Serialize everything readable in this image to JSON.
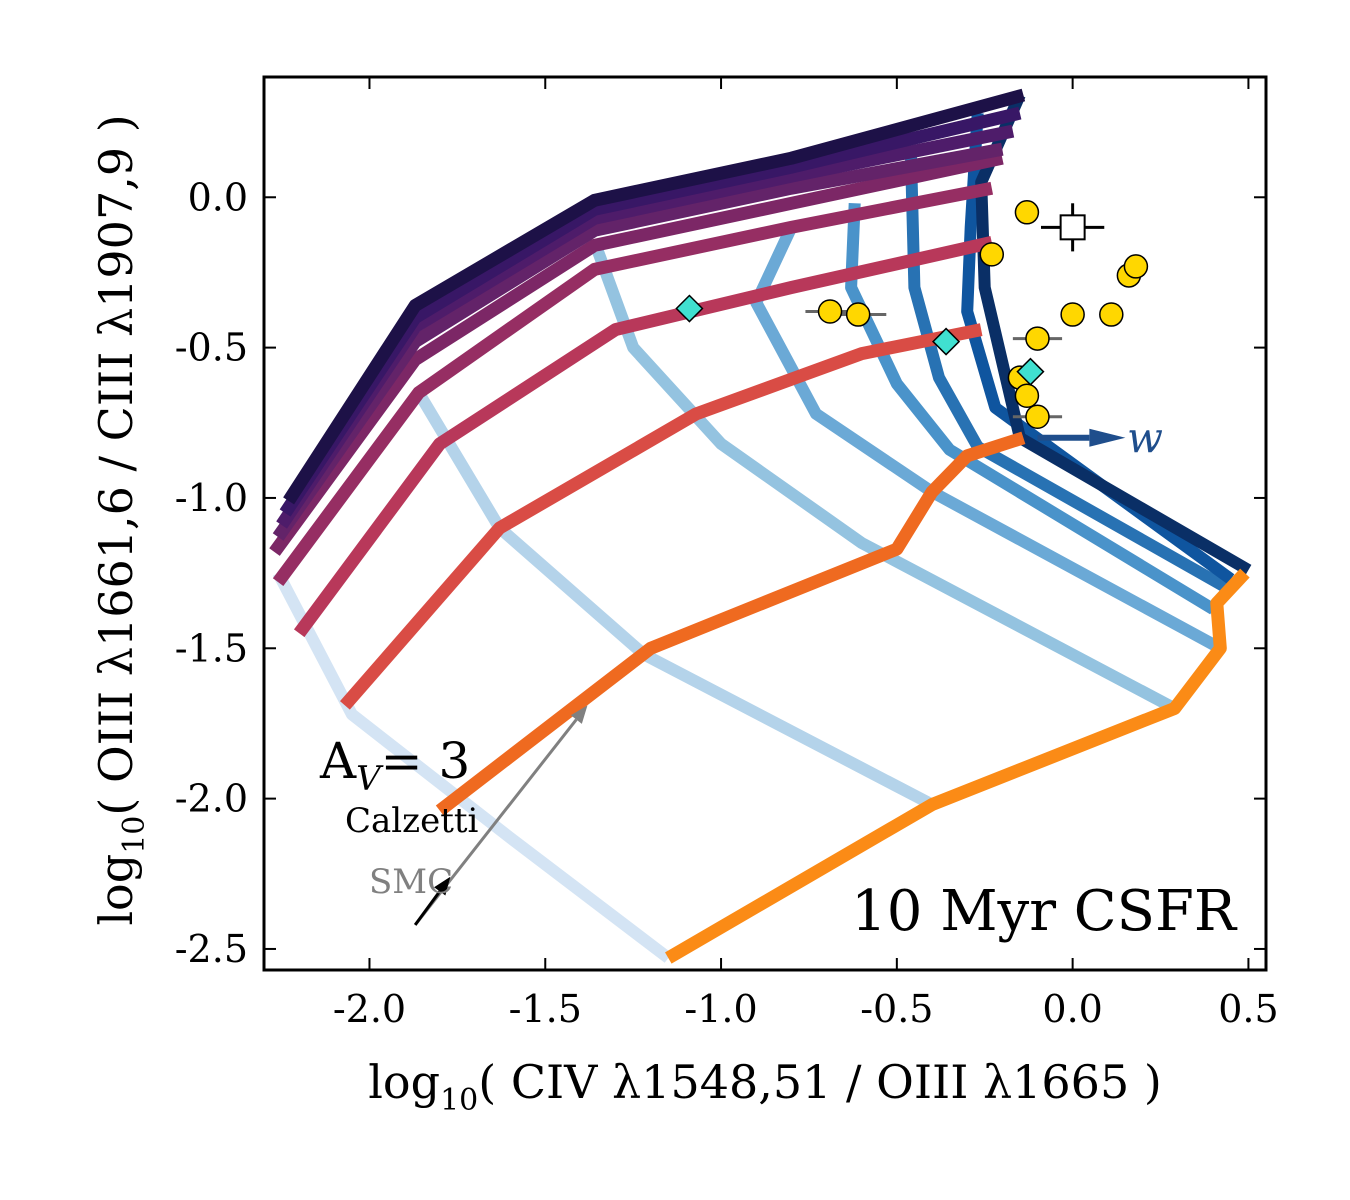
{
  "chart_data": {
    "type": "line",
    "title": "",
    "xlabel_parts": [
      "log",
      "10",
      "( CIV λ1548,51 / OIII λ1665 )"
    ],
    "ylabel_parts": [
      "log",
      "10",
      "( OIII λ1661,6 / CIII λ1907,9 )"
    ],
    "xlim": [
      -2.3,
      0.55
    ],
    "ylim": [
      -2.57,
      0.4
    ],
    "xticks": [
      -2.0,
      -1.5,
      -1.0,
      -0.5,
      0.0,
      0.5
    ],
    "xtick_labels": [
      "-2.0",
      "-1.5",
      "-1.0",
      "-0.5",
      "0.0",
      "0.5"
    ],
    "yticks": [
      0.0,
      -0.5,
      -1.0,
      -1.5,
      -2.0,
      -2.5
    ],
    "ytick_labels": [
      "0.0",
      "-0.5",
      "-1.0",
      "-1.5",
      "-2.0",
      "-2.5"
    ],
    "annotations": {
      "csfr": "10 Myr CSFR",
      "av_main": "A",
      "av_sub": "V",
      "av_eq": "= 3",
      "calzetti": "Calzetti",
      "smc": "SMC",
      "w": "w"
    },
    "colors": {
      "axis": "#000000",
      "arrow_gray": "#808080",
      "w_arrow": "#1f4e8c",
      "diamond": "#40e0d0",
      "circle": "#ffd700"
    },
    "grid_lines_colored_red_orange": [
      {
        "color": "#fb8b16",
        "points": [
          [
            -1.15,
            -2.53
          ],
          [
            -0.4,
            -2.02
          ],
          [
            0.29,
            -1.7
          ],
          [
            0.42,
            -1.5
          ],
          [
            0.41,
            -1.35
          ],
          [
            0.49,
            -1.25
          ]
        ]
      },
      {
        "color": "#ef6a20",
        "points": [
          [
            -1.8,
            -2.04
          ],
          [
            -1.2,
            -1.5
          ],
          [
            -0.5,
            -1.17
          ],
          [
            -0.4,
            -0.98
          ],
          [
            -0.3,
            -0.86
          ],
          [
            -0.14,
            -0.8
          ]
        ]
      },
      {
        "color": "#d94c45",
        "points": [
          [
            -2.07,
            -1.69
          ],
          [
            -1.63,
            -1.1
          ],
          [
            -1.07,
            -0.72
          ],
          [
            -0.6,
            -0.52
          ],
          [
            -0.26,
            -0.44
          ]
        ]
      },
      {
        "color": "#b8385a",
        "points": [
          [
            -2.2,
            -1.45
          ],
          [
            -1.8,
            -0.82
          ],
          [
            -1.3,
            -0.44
          ],
          [
            -0.8,
            -0.3
          ],
          [
            -0.23,
            -0.15
          ]
        ]
      },
      {
        "color": "#962e63",
        "points": [
          [
            -2.26,
            -1.28
          ],
          [
            -1.86,
            -0.65
          ],
          [
            -1.36,
            -0.24
          ],
          [
            -0.8,
            -0.1
          ],
          [
            -0.23,
            0.03
          ]
        ]
      },
      {
        "color": "#7c2766",
        "points": [
          [
            -2.27,
            -1.18
          ],
          [
            -1.87,
            -0.54
          ],
          [
            -1.36,
            -0.16
          ],
          [
            -0.8,
            -0.02
          ],
          [
            -0.2,
            0.13
          ]
        ]
      },
      {
        "color": "#632369",
        "points": [
          [
            -2.26,
            -1.13
          ],
          [
            -1.87,
            -0.48
          ],
          [
            -1.36,
            -0.11
          ],
          [
            -0.8,
            0.03
          ],
          [
            -0.2,
            0.16
          ]
        ]
      },
      {
        "color": "#4e1c6a",
        "points": [
          [
            -2.25,
            -1.09
          ],
          [
            -1.87,
            -0.43
          ],
          [
            -1.36,
            -0.07
          ],
          [
            -0.8,
            0.07
          ],
          [
            -0.17,
            0.22
          ]
        ]
      },
      {
        "color": "#381766",
        "points": [
          [
            -2.24,
            -1.05
          ],
          [
            -1.87,
            -0.4
          ],
          [
            -1.36,
            -0.04
          ],
          [
            -0.8,
            0.1
          ],
          [
            -0.15,
            0.28
          ]
        ]
      },
      {
        "color": "#1d1147",
        "points": [
          [
            -2.23,
            -1.01
          ],
          [
            -1.87,
            -0.36
          ],
          [
            -1.36,
            -0.01
          ],
          [
            -0.8,
            0.13
          ],
          [
            -0.14,
            0.34
          ]
        ]
      }
    ],
    "grid_lines_colored_blue": [
      {
        "color": "#d4e4f4",
        "points": [
          [
            -2.26,
            -1.25
          ],
          [
            -2.05,
            -1.72
          ],
          [
            -1.6,
            -2.13
          ],
          [
            -1.15,
            -2.53
          ]
        ]
      },
      {
        "color": "#b4d3ea",
        "points": [
          [
            -1.86,
            -0.65
          ],
          [
            -1.63,
            -1.1
          ],
          [
            -1.22,
            -1.52
          ],
          [
            -0.4,
            -2.02
          ]
        ]
      },
      {
        "color": "#94c3e0",
        "points": [
          [
            -1.35,
            -0.18
          ],
          [
            -1.25,
            -0.5
          ],
          [
            -1.0,
            -0.82
          ],
          [
            -0.6,
            -1.15
          ],
          [
            0.29,
            -1.7
          ]
        ]
      },
      {
        "color": "#6ba9d6",
        "points": [
          [
            -0.8,
            -0.1
          ],
          [
            -0.9,
            -0.35
          ],
          [
            -0.73,
            -0.72
          ],
          [
            -0.4,
            -0.98
          ],
          [
            0.42,
            -1.5
          ]
        ]
      },
      {
        "color": "#4a93ca",
        "points": [
          [
            -0.62,
            -0.02
          ],
          [
            -0.63,
            -0.3
          ],
          [
            -0.5,
            -0.62
          ],
          [
            -0.35,
            -0.84
          ],
          [
            0.4,
            -1.37
          ]
        ]
      },
      {
        "color": "#2872b3",
        "points": [
          [
            -0.46,
            0.15
          ],
          [
            -0.45,
            -0.3
          ],
          [
            -0.38,
            -0.6
          ],
          [
            -0.27,
            -0.83
          ],
          [
            0.44,
            -1.3
          ]
        ]
      },
      {
        "color": "#0f559f",
        "points": [
          [
            -0.27,
            0.28
          ],
          [
            -0.29,
            -0.1
          ],
          [
            -0.3,
            -0.38
          ],
          [
            -0.22,
            -0.7
          ],
          [
            0.45,
            -1.27
          ]
        ]
      },
      {
        "color": "#0a2f66",
        "points": [
          [
            -0.15,
            0.34
          ],
          [
            -0.26,
            0.05
          ],
          [
            -0.25,
            -0.3
          ],
          [
            -0.22,
            -0.45
          ],
          [
            -0.15,
            -0.8
          ],
          [
            0.5,
            -1.24
          ]
        ]
      }
    ],
    "scatter_circles": [
      {
        "x": -0.13,
        "y": -0.05
      },
      {
        "x": -0.23,
        "y": -0.19
      },
      {
        "x": -0.69,
        "y": -0.38,
        "xerr": 0.07
      },
      {
        "x": -0.61,
        "y": -0.39,
        "xerr": 0.08
      },
      {
        "x": -0.1,
        "y": -0.47,
        "xerr": 0.07
      },
      {
        "x": 0.0,
        "y": -0.39
      },
      {
        "x": 0.11,
        "y": -0.39
      },
      {
        "x": 0.16,
        "y": -0.26
      },
      {
        "x": 0.18,
        "y": -0.23
      },
      {
        "x": -0.15,
        "y": -0.6
      },
      {
        "x": -0.13,
        "y": -0.66
      },
      {
        "x": -0.1,
        "y": -0.73,
        "xerr": 0.07
      }
    ],
    "scatter_diamonds": [
      {
        "x": -1.09,
        "y": -0.37
      },
      {
        "x": -0.36,
        "y": -0.48
      },
      {
        "x": -0.12,
        "y": -0.58
      }
    ],
    "scatter_square": {
      "x": 0.0,
      "y": -0.1,
      "xerr": 0.09,
      "yerr": 0.08
    },
    "arrows": {
      "av_calzetti": {
        "from": [
          -1.87,
          -2.42
        ],
        "to": [
          -1.38,
          -1.69
        ]
      },
      "av_smc_head": {
        "from": [
          -1.87,
          -2.42
        ],
        "to": [
          -1.77,
          -2.26
        ]
      },
      "w_arrow": {
        "from": [
          -0.1,
          -0.8
        ],
        "to": [
          0.15,
          -0.8
        ]
      }
    }
  }
}
